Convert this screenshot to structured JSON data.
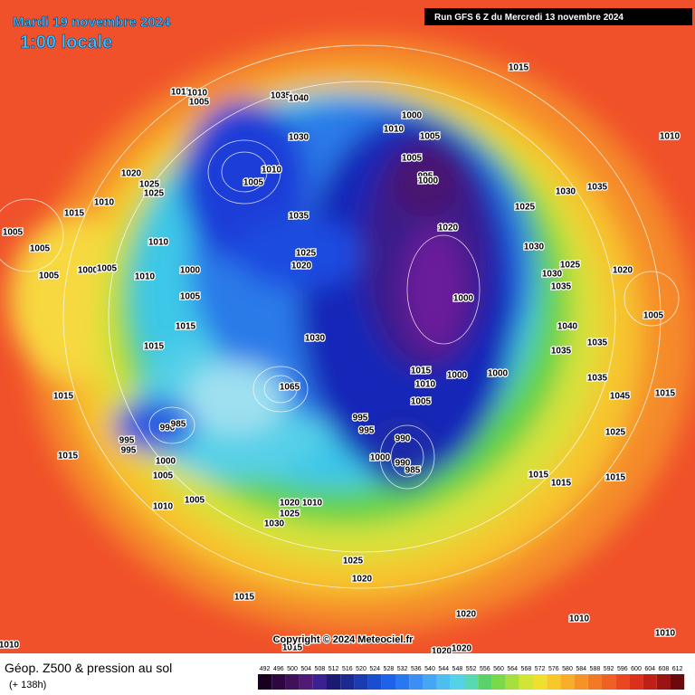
{
  "header": {
    "date": "Mardi 19 novembre 2024",
    "time": "1:00 locale",
    "run": "Run GFS 6 Z du Mercredi 13 novembre 2024"
  },
  "copyright": "Copyright © 2024 Meteociel.fr",
  "footer": {
    "title": "Géop. Z500 & pression au sol",
    "lead": "(+ 138h)"
  },
  "colorbar": [
    492,
    496,
    500,
    504,
    508,
    512,
    516,
    520,
    524,
    528,
    532,
    536,
    540,
    544,
    548,
    552,
    556,
    560,
    564,
    568,
    572,
    576,
    580,
    584,
    588,
    592,
    596,
    600,
    604,
    608,
    612
  ],
  "isobar_labels": [
    1015,
    1015,
    1010,
    1005,
    1035,
    1040,
    1000,
    1010,
    1030,
    1005,
    1010,
    1020,
    1010,
    1005,
    1025,
    1025,
    1005,
    995,
    1000,
    1030,
    1035,
    1010,
    1015,
    1035,
    1025,
    1020,
    1005,
    1005,
    1010,
    1030,
    1025,
    1020,
    1025,
    1020,
    1030,
    1000,
    1005,
    1010,
    1000,
    1005,
    1035,
    1000,
    1005,
    1015,
    1040,
    1005,
    1015,
    1030,
    1035,
    1035,
    1015,
    1000,
    1000,
    1010,
    1065,
    1035,
    1045,
    1015,
    1015,
    1005,
    995,
    995,
    990,
    985,
    990,
    995,
    995,
    1000,
    990,
    985,
    1025,
    1000,
    1005,
    1015,
    1015,
    1015,
    1015,
    1005,
    1010,
    1020,
    1010,
    1025,
    1030,
    1025,
    1020,
    1015,
    1020,
    1010,
    1010,
    1010,
    1015,
    1020,
    1020
  ]
}
